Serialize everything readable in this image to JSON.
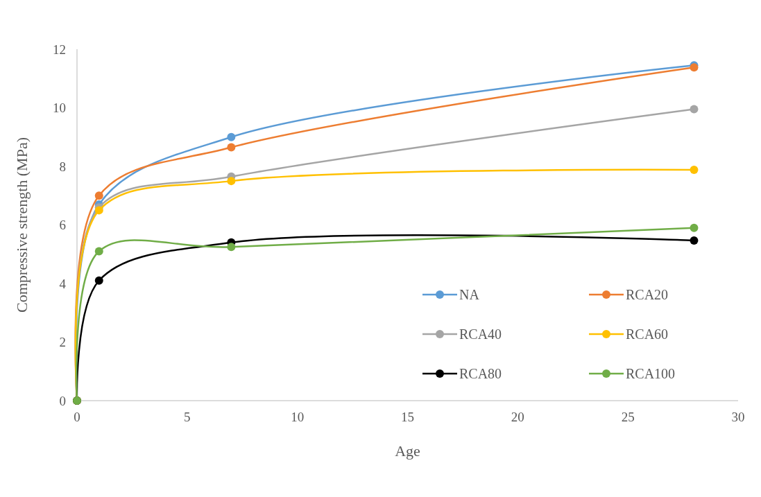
{
  "chart_data": {
    "type": "line",
    "xlabel": "Age",
    "ylabel": "Compressive strength (MPa)",
    "x": [
      0,
      1,
      7,
      28
    ],
    "xlim": [
      0,
      30
    ],
    "xticks": [
      0,
      5,
      10,
      15,
      20,
      25,
      30
    ],
    "ylim": [
      0,
      12
    ],
    "yticks": [
      0,
      2,
      4,
      6,
      8,
      10,
      12
    ],
    "grid": false,
    "legend": "bottom right",
    "marker": "circle",
    "line_style": "solid",
    "series": [
      {
        "name": "NA",
        "color": "#5b9bd5",
        "values": [
          0,
          6.7,
          9.0,
          11.45
        ]
      },
      {
        "name": "RCA20",
        "color": "#ed7d31",
        "values": [
          0,
          7.0,
          8.65,
          11.38
        ]
      },
      {
        "name": "RCA40",
        "color": "#a5a5a5",
        "values": [
          0,
          6.6,
          7.65,
          9.95
        ]
      },
      {
        "name": "RCA60",
        "color": "#ffc000",
        "values": [
          0,
          6.5,
          7.5,
          7.88
        ]
      },
      {
        "name": "RCA80",
        "color": "#000000",
        "values": [
          0,
          4.1,
          5.4,
          5.47
        ]
      },
      {
        "name": "RCA100",
        "color": "#70ad47",
        "values": [
          0,
          5.1,
          5.25,
          5.9
        ]
      }
    ]
  }
}
